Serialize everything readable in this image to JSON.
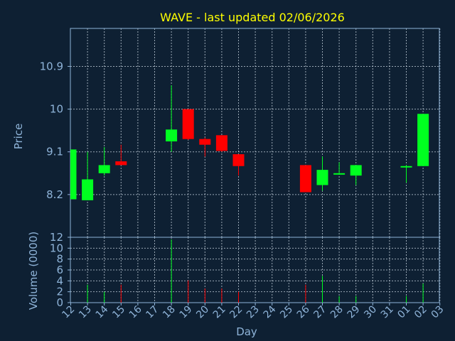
{
  "chart_data": {
    "type": "candlestick",
    "title": "WAVE - last updated 02/06/2026",
    "xlabel": "Day",
    "price_panel": {
      "ylabel": "Price",
      "yticks": [
        8.2,
        9.1,
        10,
        10.9
      ],
      "ytick_labels": [
        "8.2",
        "9.1",
        "10",
        "10.9"
      ],
      "ylim": [
        7.3,
        11.7
      ],
      "grid": true
    },
    "volume_panel": {
      "ylabel": "Volume (0000)",
      "yticks": [
        0,
        2,
        4,
        6,
        8,
        10,
        12
      ],
      "ytick_labels": [
        "0",
        "2",
        "4",
        "6",
        "8",
        "10",
        "12"
      ],
      "ylim": [
        0,
        12
      ],
      "grid": true
    },
    "x_ticks": [
      "12",
      "13",
      "14",
      "15",
      "16",
      "17",
      "18",
      "19",
      "20",
      "21",
      "22",
      "23",
      "24",
      "25",
      "26",
      "27",
      "28",
      "29",
      "30",
      "31",
      "01",
      "02",
      "03"
    ],
    "up_color": "#00ff20",
    "down_color": "#ff0000",
    "candles": [
      {
        "day": "12",
        "open": 8.1,
        "high": 9.15,
        "low": 8.1,
        "close": 9.15,
        "volume": 0
      },
      {
        "day": "13",
        "open": 8.08,
        "high": 9.1,
        "low": 8.08,
        "close": 8.52,
        "volume": 3.3
      },
      {
        "day": "14",
        "open": 8.65,
        "high": 9.2,
        "low": 8.6,
        "close": 8.82,
        "volume": 2.0
      },
      {
        "day": "15",
        "open": 8.9,
        "high": 9.25,
        "low": 8.82,
        "close": 8.82,
        "volume": 3.3
      },
      {
        "day": "18",
        "open": 9.32,
        "high": 10.5,
        "low": 9.1,
        "close": 9.57,
        "volume": 11.6
      },
      {
        "day": "19",
        "open": 10.0,
        "high": 10.0,
        "low": 9.35,
        "close": 9.37,
        "volume": 4.1
      },
      {
        "day": "20",
        "open": 9.37,
        "high": 9.4,
        "low": 9.0,
        "close": 9.25,
        "volume": 2.6
      },
      {
        "day": "21",
        "open": 9.45,
        "high": 9.45,
        "low": 9.1,
        "close": 9.12,
        "volume": 2.6
      },
      {
        "day": "22",
        "open": 9.05,
        "high": 9.05,
        "low": 8.6,
        "close": 8.8,
        "volume": 2.0
      },
      {
        "day": "26",
        "open": 8.82,
        "high": 8.82,
        "low": 8.25,
        "close": 8.25,
        "volume": 3.3
      },
      {
        "day": "27",
        "open": 8.4,
        "high": 9.0,
        "low": 8.28,
        "close": 8.72,
        "volume": 4.9
      },
      {
        "day": "28",
        "open": 8.65,
        "high": 8.88,
        "low": 8.62,
        "close": 8.65,
        "volume": 1.2
      },
      {
        "day": "29",
        "open": 8.6,
        "high": 8.82,
        "low": 8.4,
        "close": 8.82,
        "volume": 1.2
      },
      {
        "day": "01",
        "open": 8.8,
        "high": 8.82,
        "low": 8.45,
        "close": 8.8,
        "volume": 1.2
      },
      {
        "day": "02",
        "open": 8.8,
        "high": 9.9,
        "low": 8.8,
        "close": 9.9,
        "volume": 3.5
      }
    ]
  }
}
